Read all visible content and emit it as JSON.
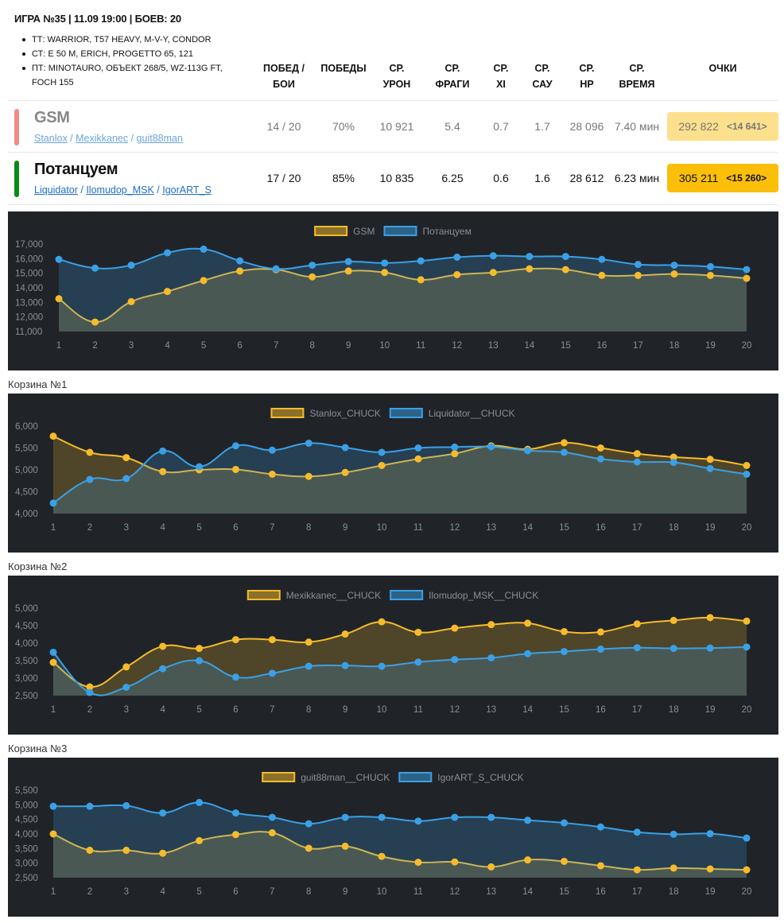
{
  "header": {
    "title": "ИГРА №35 | 11.09 19:00 | БОЕВ: 20",
    "maps": [
      "ТТ: WARRIOR, T57 HEAVY, M-V-Y, CONDOR",
      "СТ: E 50 M, ERICH, PROGETTO 65, 121",
      "ПТ: MINOTAURO, ОБЪЕКТ 268/5, WZ-113G FT, FOCH 155"
    ]
  },
  "columns": [
    {
      "line1": "ПОБЕД /",
      "line2": "БОИ"
    },
    {
      "line1": "",
      "line2": "ПОБЕДЫ"
    },
    {
      "line1": "СР.",
      "line2": "УРОН"
    },
    {
      "line1": "СР.",
      "line2": "ФРАГИ"
    },
    {
      "line1": "СР.",
      "line2": "XI"
    },
    {
      "line1": "СР.",
      "line2": "САУ"
    },
    {
      "line1": "СР.",
      "line2": "HP"
    },
    {
      "line1": "СР.",
      "line2": "ВРЕМЯ"
    },
    {
      "line1": "",
      "line2": "ОЧКИ"
    }
  ],
  "teams": [
    {
      "name": "GSM",
      "color": "#f08a86",
      "text_color": "#888888",
      "players": [
        "Stanlox",
        "Mexikkanec",
        "guit88man"
      ],
      "wins": "14 / 20",
      "winrate": "70%",
      "damage": "10 921",
      "frags": "5.4",
      "xi": "0.7",
      "spg": "1.7",
      "hp": "28 096",
      "time": "7.40 мин",
      "points": "292 822",
      "bonus": "<14 641>",
      "points_bg": "#fde08d"
    },
    {
      "name": "Потанцуем",
      "color": "#0b8a17",
      "text_color": "#111111",
      "players": [
        "Liquidator",
        "Ilomudop_MSK",
        "IgorART_S"
      ],
      "wins": "17 / 20",
      "winrate": "85%",
      "damage": "10 835",
      "frags": "6.25",
      "xi": "0.6",
      "spg": "1.6",
      "hp": "28 612",
      "time": "6.23 мин",
      "points": "305 211",
      "bonus": "<15 260>",
      "points_bg": "#fbbf0a"
    }
  ],
  "baskets": [
    "Корзина №1",
    "Корзина №2",
    "Корзина №3"
  ],
  "colors": {
    "yellow": "#f6bb2b",
    "blue": "#3aa0e6",
    "chart_bg": "#202429"
  },
  "chart_data": [
    {
      "type": "area",
      "x": [
        1,
        2,
        3,
        4,
        5,
        6,
        7,
        8,
        9,
        10,
        11,
        12,
        13,
        14,
        15,
        16,
        17,
        18,
        19,
        20
      ],
      "ylim": [
        11000,
        17000
      ],
      "yticks": [
        "11,000",
        "12,000",
        "13,000",
        "14,000",
        "15,000",
        "16,000",
        "17,000"
      ],
      "series": [
        {
          "name": "GSM",
          "values": [
            13250,
            11650,
            13050,
            13750,
            14500,
            15150,
            15250,
            14750,
            15150,
            15050,
            14550,
            14900,
            15050,
            15300,
            15250,
            14850,
            14850,
            14950,
            14850,
            14650
          ]
        },
        {
          "name": "Потанцуем",
          "values": [
            15950,
            15350,
            15550,
            16400,
            16650,
            15850,
            15300,
            15550,
            15800,
            15700,
            15850,
            16100,
            16200,
            16150,
            16150,
            15950,
            15600,
            15550,
            15450,
            15250
          ]
        }
      ]
    },
    {
      "type": "area",
      "x": [
        1,
        2,
        3,
        4,
        5,
        6,
        7,
        8,
        9,
        10,
        11,
        12,
        13,
        14,
        15,
        16,
        17,
        18,
        19,
        20
      ],
      "ylim": [
        4000,
        6000
      ],
      "yticks": [
        "4,000",
        "4,500",
        "5,000",
        "5,500",
        "6,000"
      ],
      "series": [
        {
          "name": "Stanlox_CHUCK",
          "values": [
            5770,
            5400,
            5280,
            4960,
            5000,
            5010,
            4900,
            4850,
            4940,
            5100,
            5250,
            5370,
            5550,
            5470,
            5620,
            5500,
            5370,
            5290,
            5240,
            5100
          ]
        },
        {
          "name": "Liquidator__CHUCK",
          "values": [
            4240,
            4780,
            4800,
            5430,
            5070,
            5550,
            5450,
            5610,
            5510,
            5400,
            5500,
            5520,
            5530,
            5440,
            5400,
            5250,
            5180,
            5170,
            5030,
            4900
          ]
        }
      ]
    },
    {
      "type": "area",
      "x": [
        1,
        2,
        3,
        4,
        5,
        6,
        7,
        8,
        9,
        10,
        11,
        12,
        13,
        14,
        15,
        16,
        17,
        18,
        19,
        20
      ],
      "ylim": [
        2500,
        5000
      ],
      "yticks": [
        "2,500",
        "3,000",
        "3,500",
        "4,000",
        "4,500",
        "5,000"
      ],
      "series": [
        {
          "name": "Mexikkanec__CHUCK",
          "values": [
            3450,
            2750,
            3320,
            3910,
            3850,
            4100,
            4100,
            4030,
            4260,
            4610,
            4310,
            4430,
            4530,
            4570,
            4330,
            4320,
            4550,
            4650,
            4730,
            4630
          ]
        },
        {
          "name": "Ilomudop_MSK__CHUCK",
          "values": [
            3740,
            2590,
            2740,
            3270,
            3500,
            3030,
            3140,
            3340,
            3360,
            3340,
            3460,
            3530,
            3580,
            3700,
            3760,
            3830,
            3870,
            3850,
            3860,
            3890
          ]
        }
      ]
    },
    {
      "type": "area",
      "x": [
        1,
        2,
        3,
        4,
        5,
        6,
        7,
        8,
        9,
        10,
        11,
        12,
        13,
        14,
        15,
        16,
        17,
        18,
        19,
        20
      ],
      "ylim": [
        2500,
        5500
      ],
      "yticks": [
        "2,500",
        "3,000",
        "3,500",
        "4,000",
        "4,500",
        "5,000",
        "5,500"
      ],
      "series": [
        {
          "name": "guit88man__CHUCK",
          "values": [
            4000,
            3440,
            3440,
            3340,
            3770,
            3980,
            4040,
            3510,
            3580,
            3230,
            3030,
            3040,
            2870,
            3110,
            3060,
            2910,
            2770,
            2830,
            2800,
            2770
          ]
        },
        {
          "name": "IgorART_S_CHUCK",
          "values": [
            4950,
            4950,
            4970,
            4720,
            5080,
            4720,
            4570,
            4350,
            4570,
            4570,
            4440,
            4570,
            4570,
            4470,
            4380,
            4240,
            4060,
            3990,
            4010,
            3860
          ]
        }
      ]
    }
  ]
}
